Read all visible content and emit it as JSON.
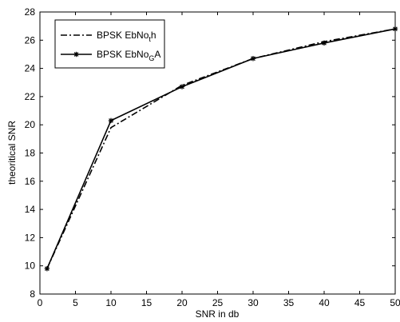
{
  "chart_data": {
    "type": "line",
    "xlabel": "SNR in db",
    "ylabel": "theoritical SNR",
    "xlim": [
      0,
      50
    ],
    "ylim": [
      8,
      28
    ],
    "xticks": [
      "0",
      "5",
      "10",
      "15",
      "20",
      "25",
      "30",
      "35",
      "40",
      "45",
      "50"
    ],
    "yticks": [
      "8",
      "10",
      "12",
      "14",
      "16",
      "18",
      "20",
      "22",
      "24",
      "26",
      "28"
    ],
    "grid": false,
    "legend_position": "top-left",
    "series": [
      {
        "name": "BPSK EbNo_th",
        "legend_parts": {
          "base": "BPSK EbNo",
          "sub": "t",
          "tail": "h"
        },
        "style": "dash-dot",
        "marker": "none",
        "color": "#000000",
        "x": [
          1,
          10,
          20,
          30,
          40,
          50
        ],
        "y": [
          9.8,
          19.8,
          22.8,
          24.7,
          25.9,
          26.8
        ]
      },
      {
        "name": "BPSK EbNo_GA",
        "legend_parts": {
          "base": "BPSK EbNo",
          "sub": "G",
          "tail": "A"
        },
        "style": "solid",
        "marker": "star",
        "color": "#000000",
        "x": [
          1,
          10,
          20,
          30,
          40,
          50
        ],
        "y": [
          9.8,
          20.3,
          22.7,
          24.7,
          25.8,
          26.8
        ]
      }
    ]
  }
}
